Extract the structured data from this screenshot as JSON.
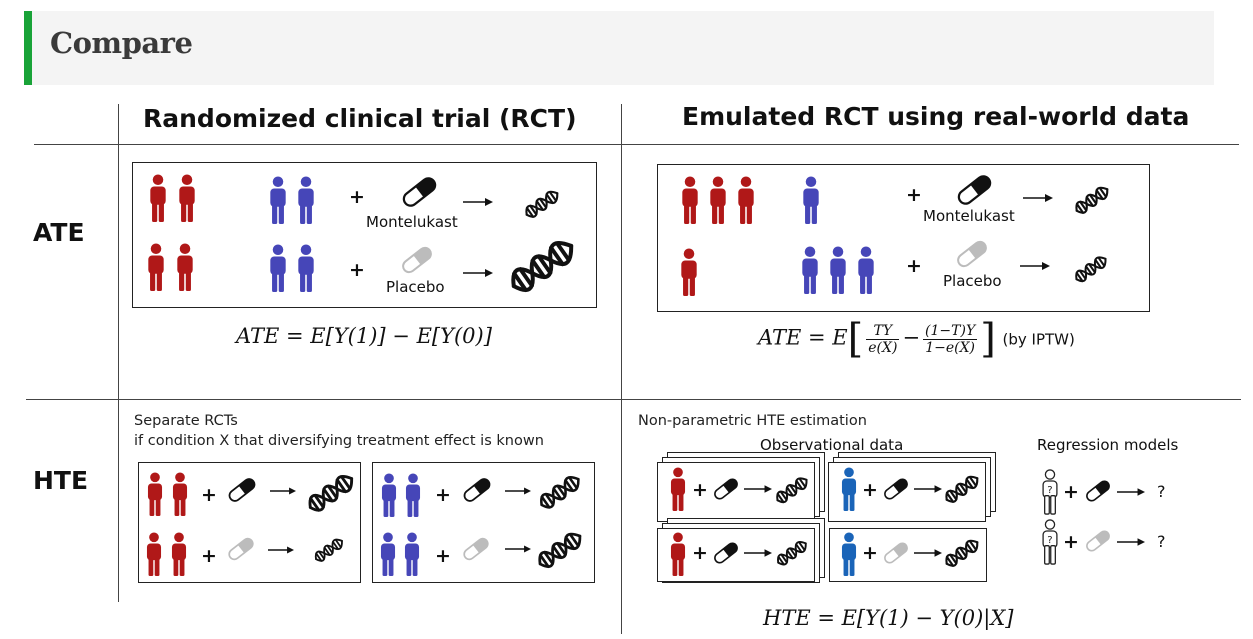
{
  "header": {
    "title": "Compare"
  },
  "columns": {
    "rct": {
      "title": "Randomized clinical trial (RCT)"
    },
    "emulated": {
      "title": "Emulated RCT using real-world data"
    }
  },
  "rows": {
    "ate": {
      "label": "ATE"
    },
    "hte": {
      "label": "HTE"
    }
  },
  "ate_rct": {
    "treatment_label": "Montelukast",
    "control_label": "Placebo",
    "formula": "ATE = E[Y(1)] − E[Y(0)]"
  },
  "ate_emulated": {
    "treatment_label": "Montelukast",
    "control_label": "Placebo",
    "formula_lhs": "ATE = E",
    "frac1_num": "TY",
    "frac1_den": "e(X)",
    "minus": "−",
    "frac2_num": "(1−T)Y",
    "frac2_den": "1−e(X)",
    "formula_note": "(by IPTW)"
  },
  "hte_rct": {
    "caption_line1": "Separate RCTs",
    "caption_line2": "if condition X that diversifying treatment effect is known"
  },
  "hte_emulated": {
    "caption": "Non-parametric HTE estimation",
    "observational_label": "Observational data",
    "regression_label": "Regression models",
    "question_mark": "?",
    "formula": "HTE = E[Y(1) − Y(0)|X]"
  },
  "plus_sign": "+",
  "colors": {
    "red_person": "#b01818",
    "blue_person": "#4646b8",
    "blue_person_alt": "#1a64b8",
    "accent_green": "#19a338",
    "placebo_grey": "#bcbcbc"
  },
  "icons": [
    "person-icon",
    "pill-icon",
    "arrow-icon",
    "dna-icon",
    "outline-person-icon"
  ]
}
